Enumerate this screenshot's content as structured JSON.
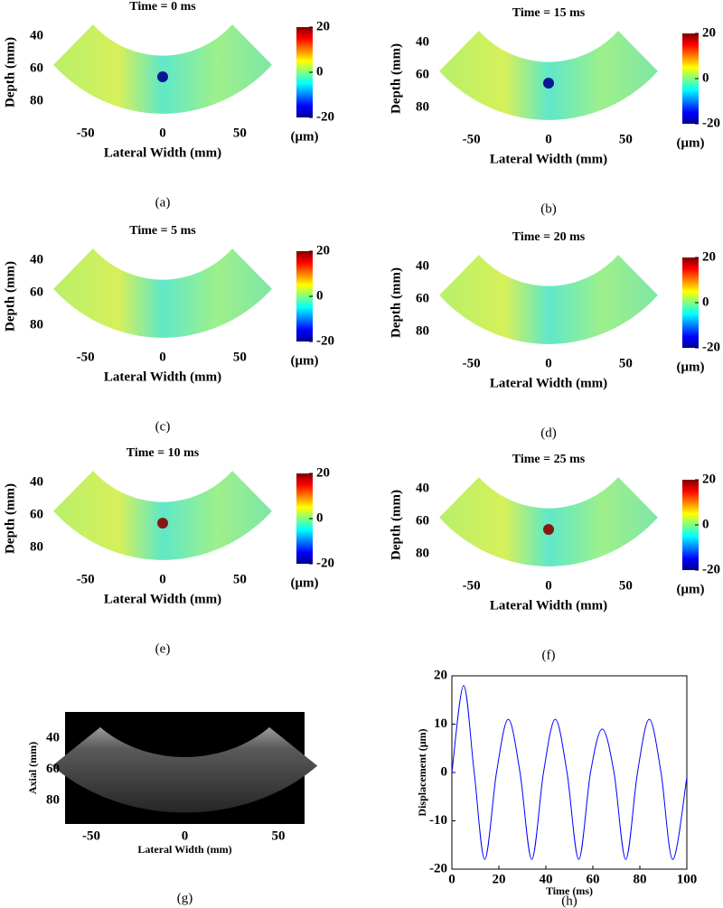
{
  "chart_data": [
    {
      "type": "heatmap",
      "title": "Time = 0 ms",
      "xlabel": "Lateral Width (mm)",
      "ylabel": "Depth (mm)",
      "xlim": [
        -75,
        75
      ],
      "xticks": [
        -50,
        0,
        50
      ],
      "ylim": [
        30,
        90
      ],
      "yticks": [
        40,
        60,
        80
      ],
      "y_reversed": true,
      "clim": [
        -20,
        20
      ],
      "cticks": [
        -20,
        0,
        20
      ],
      "colorbar_label": "(μm)",
      "caption": "(a)",
      "spot_color": "#00008b"
    },
    {
      "type": "heatmap",
      "title": "Time = 15 ms",
      "xlabel": "Lateral Width (mm)",
      "ylabel": "Depth (mm)",
      "xlim": [
        -75,
        75
      ],
      "xticks": [
        -50,
        0,
        50
      ],
      "ylim": [
        30,
        90
      ],
      "yticks": [
        40,
        60,
        80
      ],
      "y_reversed": true,
      "clim": [
        -20,
        20
      ],
      "cticks": [
        -20,
        0,
        20
      ],
      "colorbar_label": "(μm)",
      "caption": "(b)",
      "spot_color": "#00008b"
    },
    {
      "type": "heatmap",
      "title": "Time = 5 ms",
      "xlabel": "Lateral Width (mm)",
      "ylabel": "Depth (mm)",
      "xlim": [
        -75,
        75
      ],
      "xticks": [
        -50,
        0,
        50
      ],
      "ylim": [
        30,
        90
      ],
      "yticks": [
        40,
        60,
        80
      ],
      "y_reversed": true,
      "clim": [
        -20,
        20
      ],
      "cticks": [
        -20,
        0,
        20
      ],
      "colorbar_label": "(μm)",
      "caption": "(c)"
    },
    {
      "type": "heatmap",
      "title": "Time = 20 ms",
      "xlabel": "Lateral Width (mm)",
      "ylabel": "Depth (mm)",
      "xlim": [
        -75,
        75
      ],
      "xticks": [
        -50,
        0,
        50
      ],
      "ylim": [
        30,
        90
      ],
      "yticks": [
        40,
        60,
        80
      ],
      "y_reversed": true,
      "clim": [
        -20,
        20
      ],
      "cticks": [
        -20,
        0,
        20
      ],
      "colorbar_label": "(μm)",
      "caption": "(d)"
    },
    {
      "type": "heatmap",
      "title": "Time = 10 ms",
      "xlabel": "Lateral Width (mm)",
      "ylabel": "Depth (mm)",
      "xlim": [
        -75,
        75
      ],
      "xticks": [
        -50,
        0,
        50
      ],
      "ylim": [
        30,
        90
      ],
      "yticks": [
        40,
        60,
        80
      ],
      "y_reversed": true,
      "clim": [
        -20,
        20
      ],
      "cticks": [
        -20,
        0,
        20
      ],
      "colorbar_label": "(μm)",
      "caption": "(e)",
      "spot_color": "#8b0000"
    },
    {
      "type": "heatmap",
      "title": "Time = 25 ms",
      "xlabel": "Lateral Width (mm)",
      "ylabel": "Depth (mm)",
      "xlim": [
        -75,
        75
      ],
      "xticks": [
        -50,
        0,
        50
      ],
      "ylim": [
        30,
        90
      ],
      "yticks": [
        40,
        60,
        80
      ],
      "y_reversed": true,
      "clim": [
        -20,
        20
      ],
      "cticks": [
        -20,
        0,
        20
      ],
      "colorbar_label": "(μm)",
      "caption": "(f)",
      "spot_color": "#8b0000"
    },
    {
      "type": "image",
      "xlabel": "Lateral Width (mm)",
      "ylabel": "Axial (mm)",
      "xlim": [
        -64,
        64
      ],
      "xticks": [
        -50,
        0,
        50
      ],
      "ylim": [
        23,
        95
      ],
      "yticks": [
        40,
        60,
        80
      ],
      "y_reversed": true,
      "caption": "(g)"
    },
    {
      "type": "line",
      "xlabel": "Time (ms)",
      "ylabel": "Displacement (μm)",
      "x": [
        0,
        5,
        9.5,
        14,
        19,
        24,
        29,
        34,
        39,
        44,
        49,
        54,
        59,
        64,
        69,
        74,
        79,
        84,
        89,
        94,
        100
      ],
      "values": [
        0,
        18,
        0,
        -18,
        0,
        11,
        0,
        -18,
        0,
        11,
        0,
        -18,
        0,
        9,
        0,
        -18,
        0,
        11,
        0,
        -18,
        -1
      ],
      "color": "#0000ff",
      "xlim": [
        0,
        100
      ],
      "xticks": [
        0,
        20,
        40,
        60,
        80,
        100
      ],
      "ylim": [
        -20,
        20
      ],
      "yticks": [
        -20,
        -10,
        0,
        10,
        20
      ],
      "caption": "(h)"
    }
  ]
}
